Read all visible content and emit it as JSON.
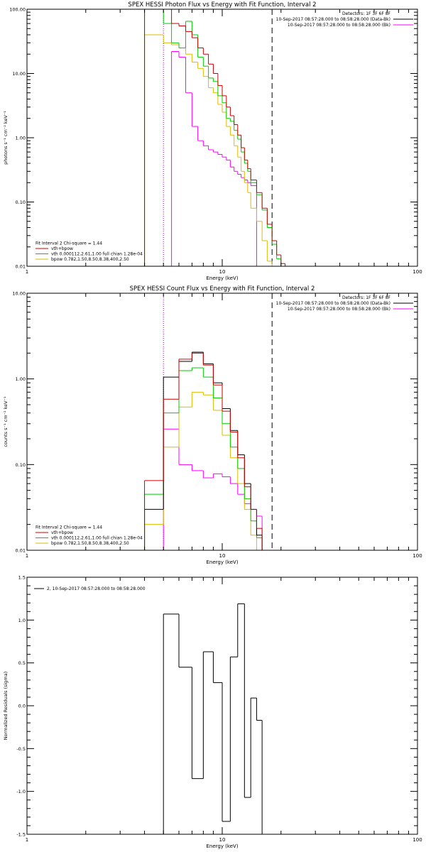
{
  "colors": {
    "data": "#000000",
    "bk": "#ff00ff",
    "total": "#cc0000",
    "vth": "#00cc00",
    "bpow": "#ddbb00",
    "axis": "#000000"
  },
  "chart_data": [
    {
      "type": "line",
      "title": "SPEX HESSI Photon Flux vs Energy with Fit Function, Interval 2",
      "xlabel": "Energy (keV)",
      "ylabel": "photons s⁻¹ cm⁻² keV⁻¹",
      "xscale": "log",
      "yscale": "log",
      "xlim": [
        1,
        100
      ],
      "ylim": [
        0.01,
        100
      ],
      "xticks": [
        {
          "v": 1,
          "label": "1"
        },
        {
          "v": 10,
          "label": "10"
        },
        {
          "v": 100,
          "label": "100"
        }
      ],
      "yticks": [
        {
          "v": 0.01,
          "label": "0.01"
        },
        {
          "v": 0.1,
          "label": "0.10"
        },
        {
          "v": 1,
          "label": "1.00"
        },
        {
          "v": 10,
          "label": "10.00"
        },
        {
          "v": 100,
          "label": "100.00"
        }
      ],
      "legend_top": [
        "Detectors: 1F 3F 6F 8F",
        "10-Sep-2017 08:57:28.000 to 08:58:28.000 (Data-Bk)",
        "10-Sep-2017 08:57:28.000 to 08:58:28.000 (Bk)"
      ],
      "legend_bottom": [
        "Fit Interval 2   Chi-square = 1.44",
        "vth+bpow",
        "vth 0.000112,2.61,1.00  full chian 1.28e-04",
        "bpow 0.782,1.50,8.50,8.38,400,2.50"
      ],
      "edges": [
        4,
        5,
        5.5,
        6,
        6.5,
        7,
        7.5,
        8,
        8.5,
        9,
        9.5,
        10,
        10.5,
        11,
        11.5,
        12,
        12.5,
        13,
        13.5,
        14,
        15,
        16,
        17,
        18,
        19,
        20,
        21,
        22,
        23
      ],
      "series": [
        {
          "name": "vth+bpow",
          "key": "total",
          "values": [
            100,
            100,
            60,
            55,
            45,
            36,
            25,
            20,
            14,
            10,
            6.5,
            4.5,
            3,
            2.2,
            1.6,
            1.1,
            0.7,
            0.45,
            0.33,
            0.22,
            0.14,
            0.08,
            0.045,
            0.025,
            0.015,
            0.011,
            0.01,
            0.01
          ]
        },
        {
          "name": "vth 0.000112,2.61,1.00  full chian 1.28e-04",
          "key": "vth",
          "values": [
            100,
            60,
            30,
            25,
            65,
            40,
            18,
            13,
            8.5,
            7.5,
            4.5,
            3.5,
            2.0,
            1.8,
            1.3,
            0.95,
            0.6,
            0.4,
            0.3,
            0.2,
            0.13,
            0.075,
            0.04,
            0.022,
            0.013,
            0.01,
            0.01,
            0.01
          ]
        },
        {
          "name": "bpow 0.782,1.50,8.50,8.38,400,2.50",
          "key": "bpow",
          "values": [
            40,
            30,
            28,
            25,
            20,
            15,
            12,
            9,
            6,
            5,
            3.3,
            2.5,
            1.5,
            1.1,
            0.75,
            0.5,
            0.3,
            0.2,
            0.14,
            0.08,
            0.05,
            0.025,
            0.012,
            0.01,
            0.01,
            0.01,
            0.01,
            0.01
          ]
        },
        {
          "name": "Bk",
          "key": "bk",
          "values": [
            null,
            null,
            22,
            18,
            5,
            1.5,
            0.9,
            0.75,
            0.65,
            0.6,
            0.55,
            0.5,
            0.45,
            0.35,
            0.3,
            0.27,
            0.24,
            0.22,
            0.2,
            0.18,
            null,
            null,
            null,
            null,
            null,
            null,
            null,
            null
          ]
        }
      ],
      "vlines": [
        {
          "x": 5,
          "style": "dotted",
          "color": "#9900cc"
        },
        {
          "x": 18,
          "style": "dashed",
          "color": "#000000"
        }
      ]
    },
    {
      "type": "line",
      "title": "SPEX HESSI Count Flux vs Energy with Fit Function, Interval 2",
      "xlabel": "Energy (keV)",
      "ylabel": "counts s⁻¹ cm⁻² keV⁻¹",
      "xscale": "log",
      "yscale": "log",
      "xlim": [
        1,
        100
      ],
      "ylim": [
        0.01,
        10
      ],
      "xticks": [
        {
          "v": 1,
          "label": "1"
        },
        {
          "v": 10,
          "label": "10"
        },
        {
          "v": 100,
          "label": "100"
        }
      ],
      "yticks": [
        {
          "v": 0.01,
          "label": "0.01"
        },
        {
          "v": 0.1,
          "label": "0.10"
        },
        {
          "v": 1,
          "label": "1.00"
        },
        {
          "v": 10,
          "label": "10.00"
        }
      ],
      "legend_top": [
        "Detectors: 1F 3F 6F 8F",
        "10-Sep-2017 08:57:28.000 to 08:58:28.000 (Data-Bk)",
        "10-Sep-2017 08:57:28.000 to 08:58:28.000 (Bk)"
      ],
      "legend_bottom": [
        "Fit Interval 2   Chi-square = 1.44",
        "vth+bpow",
        "vth 0.000112,2.61,1.00  full chian 1.28e-04",
        "bpow 0.782,1.50,8.50,8.38,400,2.50"
      ],
      "edges": [
        4,
        5,
        6,
        7,
        8,
        9,
        10,
        11,
        12,
        13,
        14,
        15,
        16,
        17,
        18
      ],
      "series": [
        {
          "name": "Data-Bk",
          "key": "data",
          "values": [
            0.03,
            1.05,
            1.6,
            2.05,
            1.5,
            0.9,
            0.45,
            0.25,
            0.13,
            0.06,
            0.03,
            0.015,
            0.01,
            0.01
          ]
        },
        {
          "name": "vth+bpow",
          "key": "total",
          "values": [
            0.065,
            0.58,
            1.7,
            2.0,
            1.45,
            0.85,
            0.42,
            0.24,
            0.12,
            0.055,
            0.03,
            0.018,
            0.01,
            0.01
          ]
        },
        {
          "name": "vth 0.000112,2.61,1.00  full chian 1.28e-04",
          "key": "vth",
          "values": [
            0.045,
            0.4,
            1.25,
            1.35,
            1.05,
            0.6,
            0.3,
            0.16,
            0.09,
            0.04,
            0.022,
            0.014,
            0.01,
            0.01
          ]
        },
        {
          "name": "bpow 0.782,1.50,8.50,8.38,400,2.50",
          "key": "bpow",
          "values": [
            0.02,
            0.16,
            0.47,
            0.7,
            0.65,
            0.43,
            0.22,
            0.12,
            0.06,
            0.03,
            0.015,
            0.01,
            0.01,
            0.01
          ]
        },
        {
          "name": "Bk",
          "key": "bk",
          "values": [
            null,
            0.26,
            0.1,
            0.085,
            0.07,
            0.078,
            0.072,
            0.06,
            0.045,
            0.035,
            0.03,
            0.025,
            null,
            null
          ]
        }
      ],
      "vlines": [
        {
          "x": 5,
          "style": "dotted",
          "color": "#9900cc"
        },
        {
          "x": 18,
          "style": "dashed",
          "color": "#000000"
        }
      ]
    },
    {
      "type": "line",
      "title": "",
      "xlabel": "Energy (keV)",
      "ylabel": "Normalized Residuals (sigma)",
      "xscale": "log",
      "yscale": "linear",
      "xlim": [
        1,
        100
      ],
      "ylim": [
        -1.5,
        1.5
      ],
      "xticks": [
        {
          "v": 1,
          "label": "1"
        },
        {
          "v": 10,
          "label": "10"
        },
        {
          "v": 100,
          "label": "100"
        }
      ],
      "yticks": [
        {
          "v": -1.5,
          "label": "-1.5"
        },
        {
          "v": -1.0,
          "label": "-1.0"
        },
        {
          "v": -0.5,
          "label": "-0.5"
        },
        {
          "v": 0,
          "label": "0.0"
        },
        {
          "v": 0.5,
          "label": "0.5"
        },
        {
          "v": 1.0,
          "label": "1.0"
        },
        {
          "v": 1.5,
          "label": "1.5"
        }
      ],
      "legend_top_left": "2, 10-Sep-2017 08:57:28.000 to 08:58:28.000",
      "edges": [
        5,
        6,
        7,
        8,
        9,
        10,
        11,
        12,
        13,
        14,
        15,
        16,
        17,
        18
      ],
      "series": [
        {
          "name": "2, 10-Sep-2017 08:57:28.000 to 08:58:28.000",
          "key": "data",
          "values": [
            1.07,
            0.45,
            -0.85,
            0.63,
            0.27,
            -1.35,
            0.57,
            1.19,
            -1.07,
            0.09,
            -0.17,
            null,
            null
          ]
        }
      ]
    }
  ]
}
